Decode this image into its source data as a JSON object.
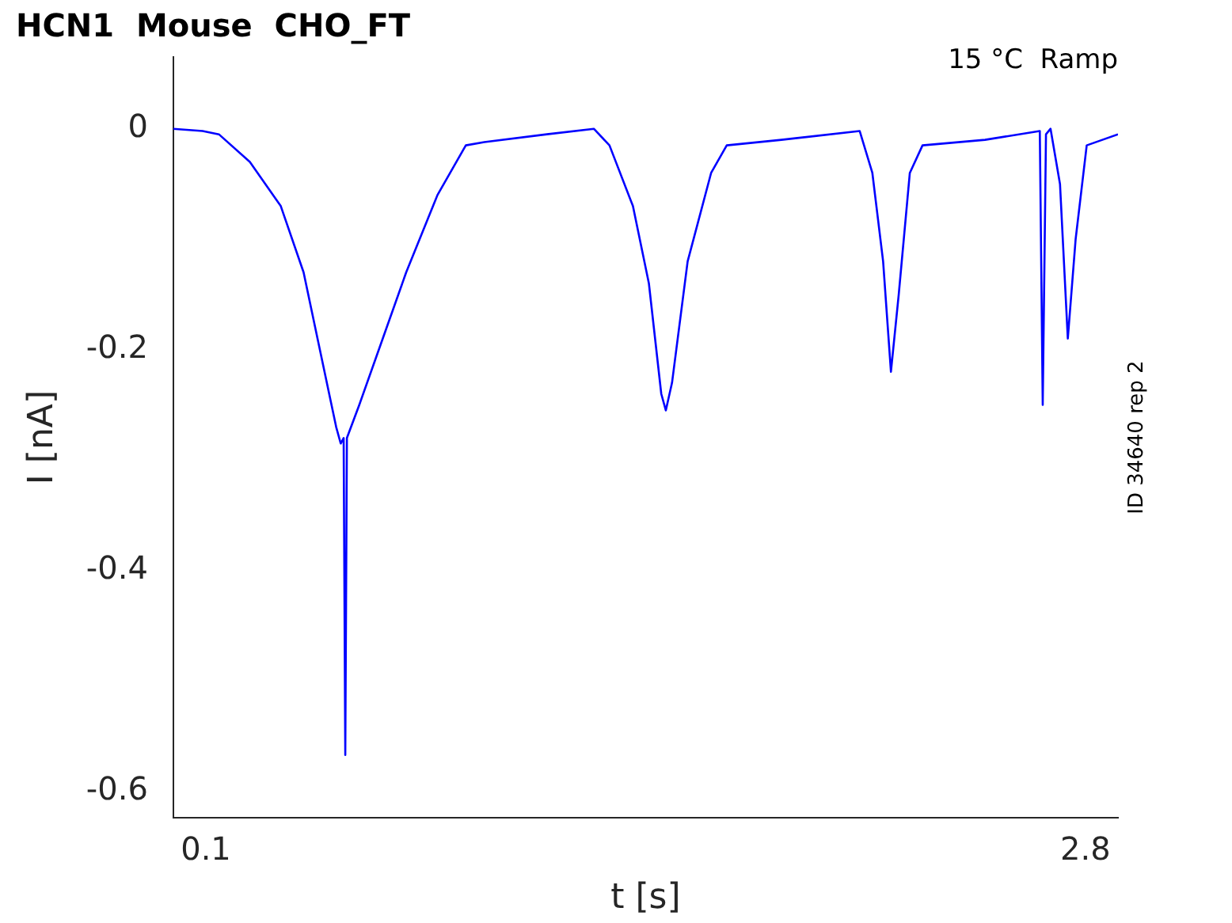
{
  "chart_data": {
    "type": "line",
    "title": "HCN1  Mouse  CHO_FT",
    "xlabel": "t [s]",
    "ylabel": "I [nA]",
    "annotations": [
      "15 °C  Ramp",
      "ID 34640 rep 2"
    ],
    "x": [
      0,
      0.09,
      0.14,
      0.235,
      0.33,
      0.4,
      0.45,
      0.5,
      0.514,
      0.523,
      0.528,
      0.533,
      0.571,
      0.643,
      0.715,
      0.811,
      0.898,
      0.955,
      1.147,
      1.291,
      1.339,
      1.411,
      1.46,
      1.498,
      1.512,
      1.531,
      1.579,
      1.651,
      1.699,
      1.867,
      2.107,
      2.146,
      2.179,
      2.203,
      2.227,
      2.261,
      2.3,
      2.492,
      2.66,
      2.669,
      2.679,
      2.693,
      2.722,
      2.746,
      2.77,
      2.804,
      2.9
    ],
    "series": [
      {
        "color": "#0000ff",
        "values": [
          0,
          -0.002,
          -0.005,
          -0.03,
          -0.07,
          -0.13,
          -0.2,
          -0.27,
          -0.285,
          -0.28,
          -0.567,
          -0.28,
          -0.25,
          -0.19,
          -0.13,
          -0.06,
          -0.015,
          -0.012,
          -0.005,
          0,
          -0.015,
          -0.07,
          -0.14,
          -0.24,
          -0.255,
          -0.23,
          -0.12,
          -0.04,
          -0.015,
          -0.01,
          -0.002,
          -0.04,
          -0.12,
          -0.22,
          -0.15,
          -0.04,
          -0.015,
          -0.01,
          -0.002,
          -0.25,
          -0.005,
          0,
          -0.05,
          -0.19,
          -0.1,
          -0.015,
          -0.005
        ]
      }
    ],
    "xlim": [
      0,
      2.9
    ],
    "ylim": [
      -0.624,
      0.065
    ],
    "xticks": [
      0.1,
      2.8
    ],
    "yticks": [
      -0.6,
      -0.4,
      -0.2,
      0
    ],
    "grid": false,
    "legend": false,
    "marker": "none",
    "line_style": "solid"
  }
}
